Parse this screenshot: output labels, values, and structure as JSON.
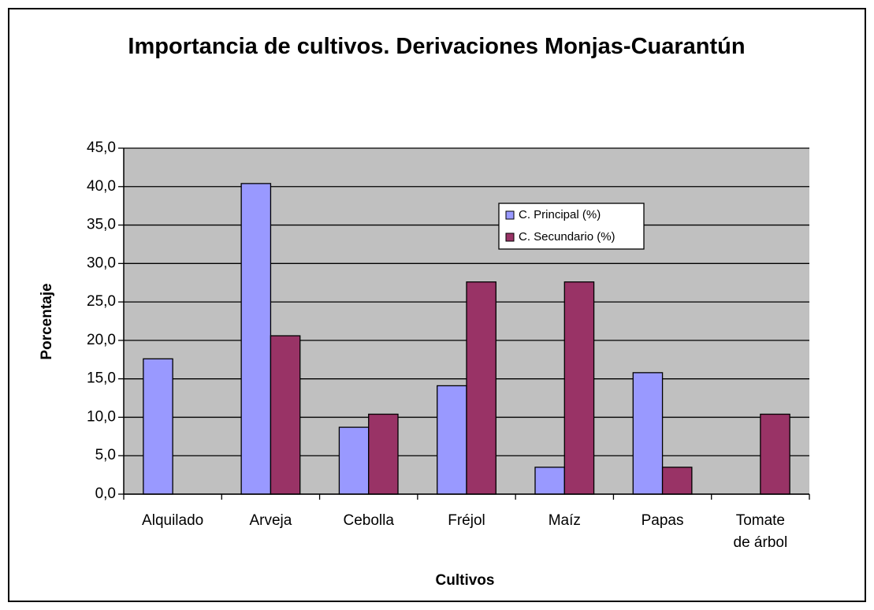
{
  "chart_data": {
    "type": "bar",
    "title": "Importancia de cultivos. Derivaciones Monjas-Cuarantún",
    "xlabel": "Cultivos",
    "ylabel": "Porcentaje",
    "categories": [
      "Alquilado",
      "Arveja",
      "Cebolla",
      "Fréjol",
      "Maíz",
      "Papas",
      "Tomate de árbol"
    ],
    "series": [
      {
        "name": "C. Principal (%)",
        "color": "#9999ff",
        "values": [
          17.6,
          40.4,
          8.7,
          14.1,
          3.5,
          15.8,
          0
        ]
      },
      {
        "name": "C. Secundario (%)",
        "color": "#993366",
        "values": [
          0,
          20.6,
          10.4,
          27.6,
          27.6,
          3.5,
          10.4
        ]
      }
    ],
    "ylim": [
      0,
      45
    ],
    "yticks": [
      {
        "value": 0,
        "label": "0,0"
      },
      {
        "value": 5,
        "label": "5,0"
      },
      {
        "value": 10,
        "label": "10,0"
      },
      {
        "value": 15,
        "label": "15,0"
      },
      {
        "value": 20,
        "label": "20,0"
      },
      {
        "value": 25,
        "label": "25,0"
      },
      {
        "value": 30,
        "label": "30,0"
      },
      {
        "value": 35,
        "label": "35,0"
      },
      {
        "value": 40,
        "label": "40,0"
      },
      {
        "value": 45,
        "label": "45,0"
      }
    ],
    "grid": true,
    "plot_background": "#c0c0c0"
  }
}
